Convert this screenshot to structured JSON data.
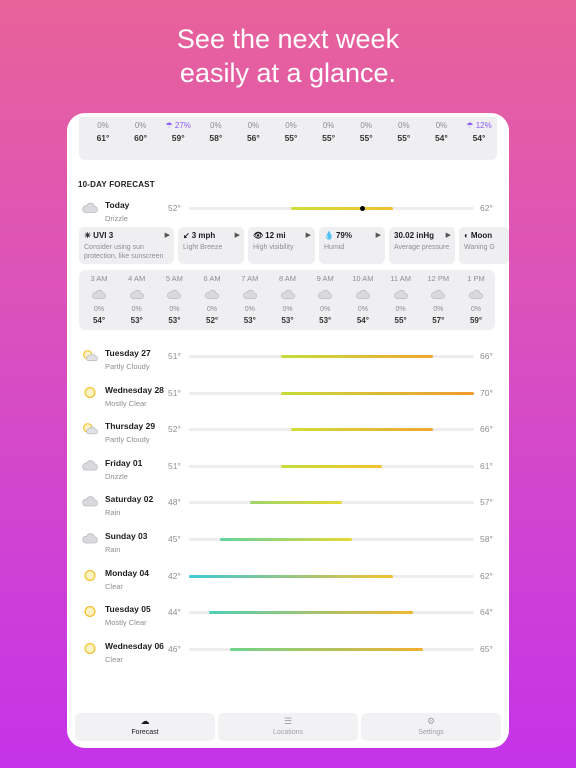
{
  "headline": {
    "line1": "See the next week",
    "line2": "easily at a glance."
  },
  "top_strip": [
    {
      "pct": "0%",
      "temp": "61°",
      "rain": false
    },
    {
      "pct": "0%",
      "temp": "60°",
      "rain": false
    },
    {
      "pct": "27%",
      "temp": "59°",
      "rain": true
    },
    {
      "pct": "0%",
      "temp": "58°",
      "rain": false
    },
    {
      "pct": "0%",
      "temp": "56°",
      "rain": false
    },
    {
      "pct": "0%",
      "temp": "55°",
      "rain": false
    },
    {
      "pct": "0%",
      "temp": "55°",
      "rain": false
    },
    {
      "pct": "0%",
      "temp": "55°",
      "rain": false
    },
    {
      "pct": "0%",
      "temp": "55°",
      "rain": false
    },
    {
      "pct": "0%",
      "temp": "54°",
      "rain": false
    },
    {
      "pct": "12%",
      "temp": "54°",
      "rain": true
    }
  ],
  "forecast_title": "10-DAY FORECAST",
  "range": {
    "min": 42,
    "max": 70
  },
  "today": {
    "name": "Today",
    "cond": "Drizzle",
    "lo": "52°",
    "hi": "62°",
    "lo_v": 52,
    "hi_v": 62,
    "current": 59,
    "icon": "cloud-icon"
  },
  "cards": [
    {
      "icon": "☀",
      "title": "UVI 3",
      "sub": "Consider using sun protection, like sunscreen"
    },
    {
      "icon": "↙",
      "title": "3 mph",
      "sub": "Light Breeze"
    },
    {
      "icon": "👁",
      "title": "12 mi",
      "sub": "High visibility"
    },
    {
      "icon": "💧",
      "title": "79%",
      "sub": "Humid"
    },
    {
      "icon": "",
      "title": "30.02 inHg",
      "sub": "Average pressure"
    },
    {
      "icon": "◐",
      "title": "Moon",
      "sub": "Waning G"
    }
  ],
  "hourly": [
    {
      "time": "3 AM",
      "pct": "0%",
      "temp": "54°"
    },
    {
      "time": "4 AM",
      "pct": "0%",
      "temp": "53°"
    },
    {
      "time": "5 AM",
      "pct": "0%",
      "temp": "53°"
    },
    {
      "time": "6 AM",
      "pct": "0%",
      "temp": "52°"
    },
    {
      "time": "7 AM",
      "pct": "0%",
      "temp": "53°"
    },
    {
      "time": "8 AM",
      "pct": "0%",
      "temp": "53°"
    },
    {
      "time": "9 AM",
      "pct": "0%",
      "temp": "53°"
    },
    {
      "time": "10 AM",
      "pct": "0%",
      "temp": "54°"
    },
    {
      "time": "11 AM",
      "pct": "0%",
      "temp": "55°"
    },
    {
      "time": "12 PM",
      "pct": "0%",
      "temp": "57°"
    },
    {
      "time": "1 PM",
      "pct": "0%",
      "temp": "59°"
    }
  ],
  "days": [
    {
      "name": "Tuesday 27",
      "cond": "Partly Cloudy",
      "lo": "51°",
      "hi": "66°",
      "lo_v": 51,
      "hi_v": 66,
      "icon": "partly-cloudy-icon",
      "c1": "#c6dc3a",
      "c2": "#f0a630"
    },
    {
      "name": "Wednesday 28",
      "cond": "Mostly Clear",
      "lo": "51°",
      "hi": "70°",
      "lo_v": 51,
      "hi_v": 70,
      "icon": "sun-icon",
      "c1": "#c6dc3a",
      "c2": "#f29a2e"
    },
    {
      "name": "Thursday 29",
      "cond": "Partly Cloudy",
      "lo": "52°",
      "hi": "66°",
      "lo_v": 52,
      "hi_v": 66,
      "icon": "partly-cloudy-icon",
      "c1": "#d0de38",
      "c2": "#f0a630"
    },
    {
      "name": "Friday 01",
      "cond": "Drizzle",
      "lo": "51°",
      "hi": "61°",
      "lo_v": 51,
      "hi_v": 61,
      "icon": "cloud-icon",
      "c1": "#c6dc3a",
      "c2": "#f2c230"
    },
    {
      "name": "Saturday 02",
      "cond": "Rain",
      "lo": "48°",
      "hi": "57°",
      "lo_v": 48,
      "hi_v": 57,
      "icon": "cloud-icon",
      "c1": "#9ed56a",
      "c2": "#e6d836"
    },
    {
      "name": "Sunday 03",
      "cond": "Rain",
      "lo": "45°",
      "hi": "58°",
      "lo_v": 45,
      "hi_v": 58,
      "icon": "cloud-icon",
      "c1": "#5fd3a0",
      "c2": "#e8d836"
    },
    {
      "name": "Monday 04",
      "cond": "Clear",
      "lo": "42°",
      "hi": "62°",
      "lo_v": 42,
      "hi_v": 62,
      "icon": "sun-icon",
      "c1": "#3cc9d6",
      "c2": "#f2c230"
    },
    {
      "name": "Tuesday 05",
      "cond": "Mostly Clear",
      "lo": "44°",
      "hi": "64°",
      "lo_v": 44,
      "hi_v": 64,
      "icon": "sun-icon",
      "c1": "#4fd0b4",
      "c2": "#f2b630"
    },
    {
      "name": "Wednesday 06",
      "cond": "Clear",
      "lo": "46°",
      "hi": "65°",
      "lo_v": 46,
      "hi_v": 65,
      "icon": "sun-icon",
      "c1": "#6fd48c",
      "c2": "#f2b030"
    }
  ],
  "tabs": [
    {
      "label": "Forecast",
      "icon": "cloud-icon",
      "active": true
    },
    {
      "label": "Locations",
      "icon": "list-icon",
      "active": false
    },
    {
      "label": "Settings",
      "icon": "gear-icon",
      "active": false
    }
  ]
}
